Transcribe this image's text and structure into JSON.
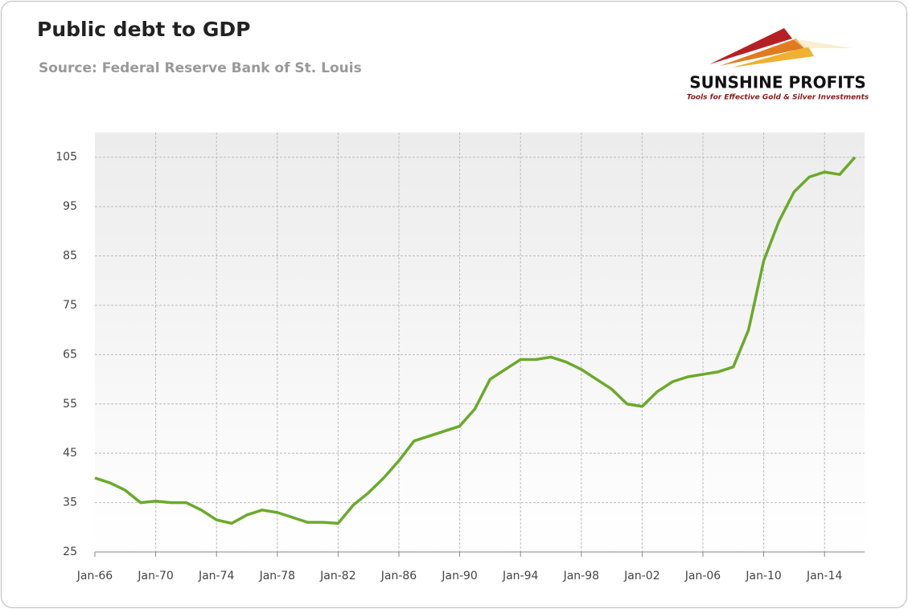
{
  "chart_data": {
    "type": "line",
    "title": "Public debt to GDP",
    "subtitle": "Source: Federal Reserve Bank of St. Louis",
    "logo_name": "SUNSHINE PROFITS",
    "logo_tagline": "Tools for Effective Gold & Silver Investments",
    "categories": [
      "Jan-66",
      null,
      null,
      null,
      "Jan-70",
      null,
      null,
      null,
      "Jan-74",
      null,
      null,
      null,
      "Jan-78",
      null,
      null,
      null,
      "Jan-82",
      null,
      null,
      null,
      "Jan-86",
      null,
      null,
      null,
      "Jan-90",
      null,
      null,
      null,
      "Jan-94",
      null,
      null,
      null,
      "Jan-98",
      null,
      null,
      null,
      "Jan-02",
      null,
      null,
      null,
      "Jan-06",
      null,
      null,
      null,
      "Jan-10",
      null,
      null,
      null,
      "Jan-14",
      null,
      null
    ],
    "series": [
      {
        "name": "Public debt to GDP",
        "color": "#6aaa2a",
        "values": [
          40,
          39,
          37.5,
          35,
          35.3,
          35,
          35,
          33.5,
          31.5,
          30.8,
          32.5,
          33.5,
          33,
          32,
          31,
          31,
          30.8,
          34.5,
          37,
          40,
          43.5,
          47.5,
          48.5,
          49.5,
          50.5,
          54,
          60,
          62,
          64,
          64,
          64.5,
          63.5,
          62,
          60,
          58,
          55,
          54.5,
          57.5,
          59.5,
          60.5,
          61,
          61.5,
          62.5,
          70,
          84,
          92,
          98,
          101,
          102,
          101.5,
          105
        ]
      }
    ],
    "ylim": [
      25,
      110
    ],
    "yticks": [
      25,
      35,
      45,
      55,
      65,
      75,
      85,
      95,
      105
    ],
    "grid": true
  }
}
